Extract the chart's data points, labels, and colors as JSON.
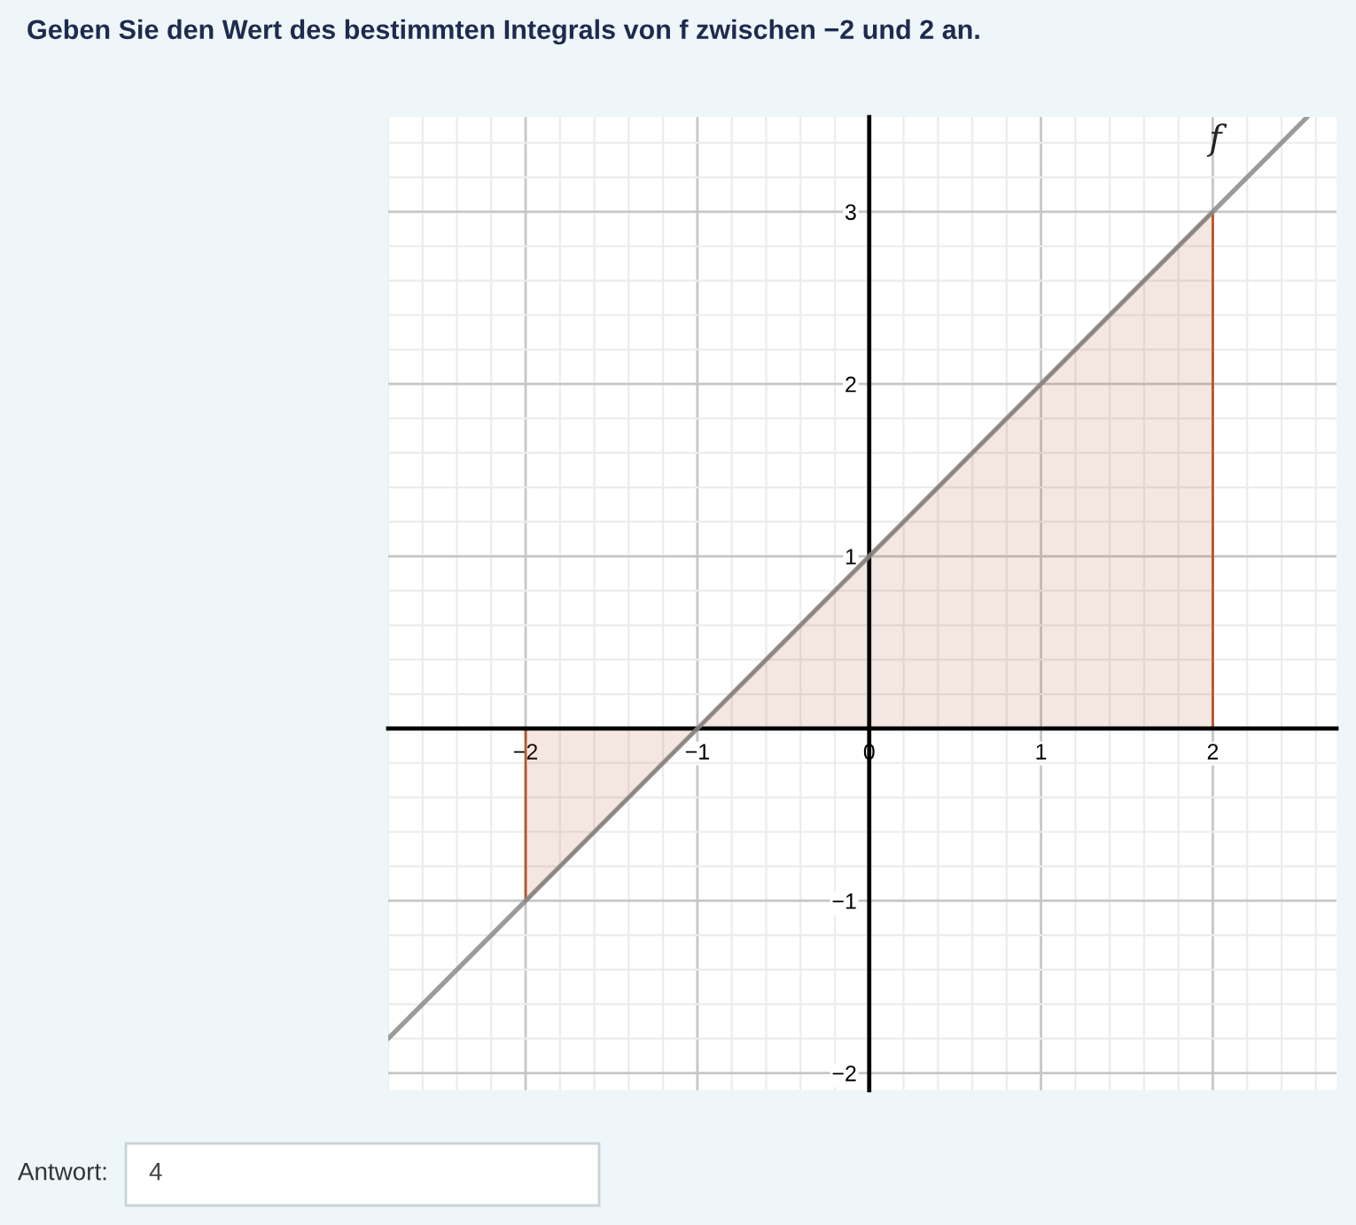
{
  "chart_data": {
    "type": "line",
    "title": "Geben Sie den Wert des bestimmten Integrals von f zwischen −2 und 2 an.",
    "series": [
      {
        "type": "area",
        "x": [
          -2,
          -1,
          0,
          1,
          2
        ],
        "values": [
          -1,
          0,
          1,
          2,
          3
        ],
        "color": "#b5552c"
      },
      {
        "name": "f",
        "x": [
          -2.8,
          2.55
        ],
        "values": [
          -1.8,
          3.55
        ],
        "color": "#8a8a8a"
      }
    ],
    "xlim": [
      -2.8,
      2.72
    ],
    "ylim": [
      -2.1,
      3.55
    ],
    "xticks": [
      {
        "value": -2.8,
        "label": null
      },
      {
        "value": -2.6,
        "label": null
      },
      {
        "value": -2.4,
        "label": null
      },
      {
        "value": -2.2,
        "label": null
      },
      {
        "value": -2,
        "label": "−2"
      },
      {
        "value": -1.8,
        "label": null
      },
      {
        "value": -1.6,
        "label": null
      },
      {
        "value": -1.4,
        "label": null
      },
      {
        "value": -1.2,
        "label": null
      },
      {
        "value": -1,
        "label": "−1"
      },
      {
        "value": -0.8,
        "label": null
      },
      {
        "value": -0.6,
        "label": null
      },
      {
        "value": -0.4,
        "label": null
      },
      {
        "value": -0.2,
        "label": null
      },
      0,
      {
        "value": 0.2,
        "label": null
      },
      {
        "value": 0.4,
        "label": null
      },
      {
        "value": 0.6,
        "label": null
      },
      {
        "value": 0.8,
        "label": null
      },
      1,
      {
        "value": 1.2,
        "label": null
      },
      {
        "value": 1.4,
        "label": null
      },
      {
        "value": 1.6,
        "label": null
      },
      {
        "value": 1.8,
        "label": null
      },
      2,
      {
        "value": 2.2,
        "label": null
      },
      {
        "value": 2.4,
        "label": null
      },
      {
        "value": 2.6,
        "label": null
      }
    ],
    "yticks": [
      {
        "value": -2,
        "label": "−2"
      },
      {
        "value": -1.8,
        "label": null
      },
      {
        "value": -1.6,
        "label": null
      },
      {
        "value": -1.4,
        "label": null
      },
      {
        "value": -1.2,
        "label": null
      },
      {
        "value": -1,
        "label": "−1"
      },
      {
        "value": -0.8,
        "label": null
      },
      {
        "value": -0.6,
        "label": null
      },
      {
        "value": -0.4,
        "label": null
      },
      {
        "value": -0.2,
        "label": null
      },
      {
        "value": 0,
        "label": null
      },
      {
        "value": 0.2,
        "label": null
      },
      {
        "value": 0.4,
        "label": null
      },
      {
        "value": 0.6,
        "label": null
      },
      {
        "value": 0.8,
        "label": null
      },
      1,
      {
        "value": 1.2,
        "label": null
      },
      {
        "value": 1.4,
        "label": null
      },
      {
        "value": 1.6,
        "label": null
      },
      {
        "value": 1.8,
        "label": null
      },
      2,
      {
        "value": 2.2,
        "label": null
      },
      {
        "value": 2.4,
        "label": null
      },
      {
        "value": 2.6,
        "label": null
      },
      {
        "value": 2.8,
        "label": null
      },
      3,
      {
        "value": 3.2,
        "label": null
      },
      {
        "value": 3.4,
        "label": null
      }
    ],
    "grid": true,
    "annotations": [
      "Antwort:",
      "4"
    ]
  }
}
